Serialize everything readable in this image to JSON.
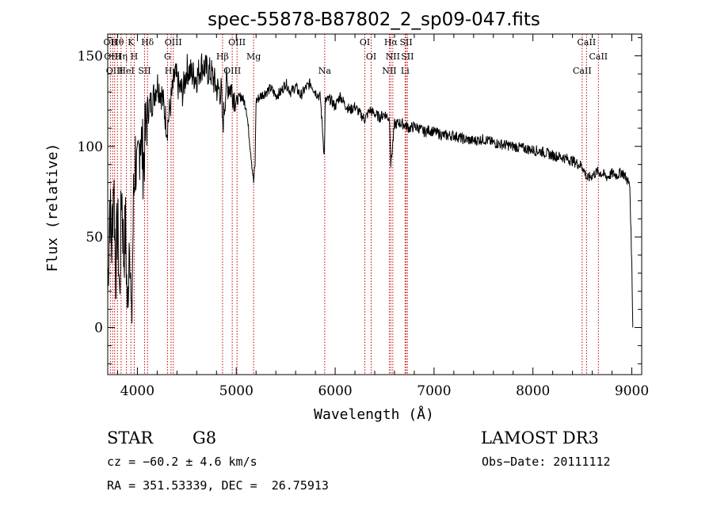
{
  "chart_data": {
    "type": "line",
    "title": "spec-55878-B87802_2_sp09-047.fits",
    "xlabel": "Wavelength (Å)",
    "ylabel": "Flux (relative)",
    "xlim": [
      3700,
      9100
    ],
    "ylim": [
      -26,
      162
    ],
    "xticks": [
      4000,
      5000,
      6000,
      7000,
      8000,
      9000
    ],
    "yticks": [
      0,
      50,
      100,
      150
    ],
    "series": [
      {
        "name": "flux",
        "x": [
          3700,
          3720,
          3740,
          3760,
          3780,
          3800,
          3820,
          3840,
          3860,
          3880,
          3900,
          3920,
          3940,
          3960,
          3980,
          4000,
          4030,
          4060,
          4100,
          4150,
          4200,
          4250,
          4300,
          4340,
          4380,
          4420,
          4460,
          4500,
          4550,
          4600,
          4650,
          4700,
          4750,
          4800,
          4850,
          4861,
          4900,
          4950,
          5000,
          5050,
          5100,
          5150,
          5175,
          5190,
          5200,
          5250,
          5300,
          5350,
          5400,
          5450,
          5500,
          5550,
          5600,
          5650,
          5700,
          5750,
          5800,
          5850,
          5890,
          5895,
          5900,
          5950,
          6000,
          6050,
          6100,
          6150,
          6200,
          6250,
          6300,
          6350,
          6400,
          6450,
          6500,
          6550,
          6563,
          6600,
          6650,
          6700,
          6750,
          6800,
          6850,
          6900,
          6950,
          7000,
          7100,
          7200,
          7300,
          7400,
          7500,
          7600,
          7700,
          7800,
          7900,
          8000,
          8100,
          8200,
          8300,
          8400,
          8500,
          8550,
          8600,
          8650,
          8700,
          8750,
          8800,
          8850,
          8900,
          8950,
          8980,
          9000,
          9010
        ],
        "y": [
          20,
          70,
          45,
          85,
          30,
          60,
          15,
          80,
          40,
          55,
          5,
          60,
          -5,
          70,
          95,
          80,
          110,
          90,
          120,
          125,
          135,
          128,
          110,
          125,
          140,
          132,
          130,
          143,
          140,
          138,
          145,
          142,
          140,
          132,
          130,
          110,
          135,
          132,
          125,
          128,
          122,
          95,
          80,
          90,
          125,
          128,
          130,
          132,
          128,
          130,
          135,
          130,
          133,
          128,
          132,
          135,
          130,
          127,
          95,
          110,
          125,
          126,
          122,
          128,
          123,
          120,
          122,
          118,
          115,
          120,
          118,
          116,
          118,
          115,
          90,
          112,
          113,
          112,
          110,
          111,
          110,
          108,
          109,
          108,
          106,
          106,
          104,
          103,
          104,
          102,
          101,
          100,
          99,
          98,
          97,
          95,
          94,
          92,
          89,
          82,
          84,
          86,
          85,
          83,
          85,
          84,
          86,
          82,
          78,
          35,
          0
        ]
      }
    ],
    "line_markers": [
      {
        "wavelength": 3727,
        "label": "OII"
      },
      {
        "wavelength": 3750,
        "label": "OIII"
      },
      {
        "wavelength": 3770,
        "label": "OIII"
      },
      {
        "wavelength": 3798,
        "label": "Hθ"
      },
      {
        "wavelength": 3835,
        "label": "Hη"
      },
      {
        "wavelength": 3889,
        "label": "HeI"
      },
      {
        "wavelength": 3934,
        "label": "K"
      },
      {
        "wavelength": 3968,
        "label": "H"
      },
      {
        "wavelength": 4072,
        "label": "SII"
      },
      {
        "wavelength": 4102,
        "label": "Hδ"
      },
      {
        "wavelength": 4304,
        "label": "G"
      },
      {
        "wavelength": 4340,
        "label": "Hγ"
      },
      {
        "wavelength": 4363,
        "label": "OIII"
      },
      {
        "wavelength": 4861,
        "label": "Hβ"
      },
      {
        "wavelength": 4959,
        "label": "OIII"
      },
      {
        "wavelength": 5007,
        "label": "OIII"
      },
      {
        "wavelength": 5175,
        "label": "Mg"
      },
      {
        "wavelength": 5894,
        "label": "Na"
      },
      {
        "wavelength": 6300,
        "label": "OI"
      },
      {
        "wavelength": 6364,
        "label": "OI"
      },
      {
        "wavelength": 6548,
        "label": "NII"
      },
      {
        "wavelength": 6563,
        "label": "Hα"
      },
      {
        "wavelength": 6583,
        "label": "NII"
      },
      {
        "wavelength": 6707,
        "label": "Li"
      },
      {
        "wavelength": 6717,
        "label": "SII"
      },
      {
        "wavelength": 6731,
        "label": "SII"
      },
      {
        "wavelength": 8498,
        "label": "CaII"
      },
      {
        "wavelength": 8542,
        "label": "CaII"
      },
      {
        "wavelength": 8662,
        "label": "CaII"
      }
    ]
  },
  "info": {
    "object_class": "STAR",
    "subclass": "G8",
    "survey": "LAMOST DR3",
    "cz": "cz = −60.2 ± 4.6 km/s",
    "obs_date": "Obs−Date: 20111112",
    "coords": "RA = 351.53339, DEC =  26.75913"
  },
  "colors": {
    "spectrum": "#000000",
    "marker": "#c00000",
    "axes": "#000000"
  }
}
